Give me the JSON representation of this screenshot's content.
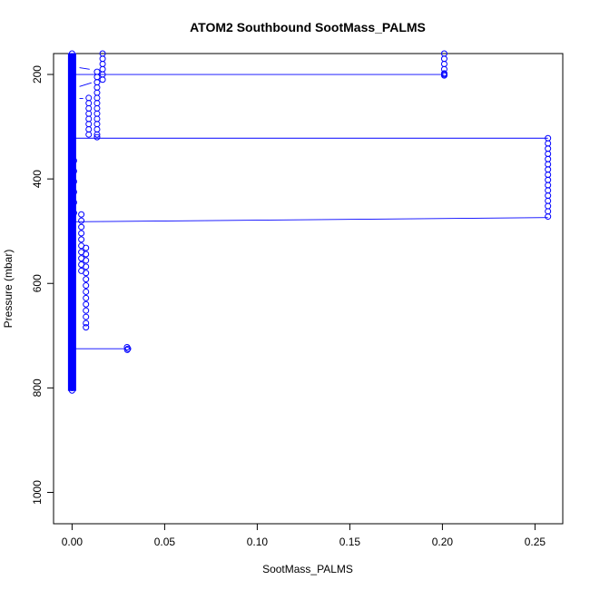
{
  "chart_data": {
    "type": "scatter",
    "title": "ATOM2 Southbound SootMass_PALMS",
    "xlabel": "SootMass_PALMS",
    "ylabel": "Pressure (mbar)",
    "xlim": [
      -0.01,
      0.265
    ],
    "ylim": [
      1060,
      160
    ],
    "y_reversed": true,
    "grid": false,
    "x_ticks": [
      {
        "value": 0.0,
        "label": "0.00"
      },
      {
        "value": 0.05,
        "label": "0.05"
      },
      {
        "value": 0.1,
        "label": "0.10"
      },
      {
        "value": 0.15,
        "label": "0.15"
      },
      {
        "value": 0.2,
        "label": "0.20"
      },
      {
        "value": 0.25,
        "label": "0.25"
      }
    ],
    "y_ticks": [
      {
        "value": 200,
        "label": "200"
      },
      {
        "value": 400,
        "label": "400"
      },
      {
        "value": 600,
        "label": "600"
      },
      {
        "value": 800,
        "label": "800"
      },
      {
        "value": 1000,
        "label": "1000"
      }
    ],
    "colors": {
      "points": "#0000ff",
      "line": "#0000ff",
      "axes": "#000000"
    },
    "series": [
      {
        "points": [
          {
            "x": 0.0,
            "y": 160
          },
          {
            "x": 0.0,
            "y": 200
          },
          {
            "x": 0.0,
            "y": 250
          },
          {
            "x": 0.0,
            "y": 300
          },
          {
            "x": 0.0,
            "y": 350
          },
          {
            "x": 0.0,
            "y": 400
          },
          {
            "x": 0.0,
            "y": 450
          },
          {
            "x": 0.0,
            "y": 500
          },
          {
            "x": 0.0,
            "y": 550
          },
          {
            "x": 0.0,
            "y": 600
          },
          {
            "x": 0.0,
            "y": 650
          },
          {
            "x": 0.0,
            "y": 700
          },
          {
            "x": 0.0,
            "y": 750
          },
          {
            "x": 0.0,
            "y": 800
          },
          {
            "x": 0.0,
            "y": 805
          },
          {
            "x": 0.0165,
            "y": 160
          },
          {
            "x": 0.0165,
            "y": 170
          },
          {
            "x": 0.0165,
            "y": 180
          },
          {
            "x": 0.0165,
            "y": 190
          },
          {
            "x": 0.0165,
            "y": 200
          },
          {
            "x": 0.0165,
            "y": 210
          },
          {
            "x": 0.0135,
            "y": 195
          },
          {
            "x": 0.0135,
            "y": 205
          },
          {
            "x": 0.0135,
            "y": 215
          },
          {
            "x": 0.0135,
            "y": 225
          },
          {
            "x": 0.0135,
            "y": 235
          },
          {
            "x": 0.0135,
            "y": 245
          },
          {
            "x": 0.0135,
            "y": 255
          },
          {
            "x": 0.0135,
            "y": 265
          },
          {
            "x": 0.0135,
            "y": 275
          },
          {
            "x": 0.0135,
            "y": 285
          },
          {
            "x": 0.0135,
            "y": 295
          },
          {
            "x": 0.0135,
            "y": 305
          },
          {
            "x": 0.0135,
            "y": 315
          },
          {
            "x": 0.0135,
            "y": 320
          },
          {
            "x": 0.009,
            "y": 245
          },
          {
            "x": 0.009,
            "y": 255
          },
          {
            "x": 0.009,
            "y": 265
          },
          {
            "x": 0.009,
            "y": 275
          },
          {
            "x": 0.009,
            "y": 285
          },
          {
            "x": 0.009,
            "y": 295
          },
          {
            "x": 0.009,
            "y": 305
          },
          {
            "x": 0.009,
            "y": 315
          },
          {
            "x": 0.201,
            "y": 160
          },
          {
            "x": 0.201,
            "y": 170
          },
          {
            "x": 0.201,
            "y": 180
          },
          {
            "x": 0.201,
            "y": 190
          },
          {
            "x": 0.201,
            "y": 198
          },
          {
            "x": 0.201,
            "y": 200
          },
          {
            "x": 0.201,
            "y": 202
          },
          {
            "x": 0.257,
            "y": 322
          },
          {
            "x": 0.257,
            "y": 332
          },
          {
            "x": 0.257,
            "y": 342
          },
          {
            "x": 0.257,
            "y": 352
          },
          {
            "x": 0.257,
            "y": 362
          },
          {
            "x": 0.257,
            "y": 372
          },
          {
            "x": 0.257,
            "y": 382
          },
          {
            "x": 0.257,
            "y": 392
          },
          {
            "x": 0.257,
            "y": 402
          },
          {
            "x": 0.257,
            "y": 412
          },
          {
            "x": 0.257,
            "y": 422
          },
          {
            "x": 0.257,
            "y": 432
          },
          {
            "x": 0.257,
            "y": 442
          },
          {
            "x": 0.257,
            "y": 452
          },
          {
            "x": 0.257,
            "y": 462
          },
          {
            "x": 0.257,
            "y": 472
          },
          {
            "x": 0.001,
            "y": 365
          },
          {
            "x": 0.001,
            "y": 385
          },
          {
            "x": 0.001,
            "y": 405
          },
          {
            "x": 0.001,
            "y": 425
          },
          {
            "x": 0.001,
            "y": 445
          },
          {
            "x": 0.001,
            "y": 465
          },
          {
            "x": 0.005,
            "y": 468
          },
          {
            "x": 0.005,
            "y": 480
          },
          {
            "x": 0.005,
            "y": 492
          },
          {
            "x": 0.005,
            "y": 504
          },
          {
            "x": 0.005,
            "y": 516
          },
          {
            "x": 0.005,
            "y": 528
          },
          {
            "x": 0.005,
            "y": 540
          },
          {
            "x": 0.005,
            "y": 552
          },
          {
            "x": 0.005,
            "y": 564
          },
          {
            "x": 0.005,
            "y": 576
          },
          {
            "x": 0.0075,
            "y": 532
          },
          {
            "x": 0.0075,
            "y": 544
          },
          {
            "x": 0.0075,
            "y": 556
          },
          {
            "x": 0.0075,
            "y": 568
          },
          {
            "x": 0.0075,
            "y": 580
          },
          {
            "x": 0.0075,
            "y": 592
          },
          {
            "x": 0.0075,
            "y": 604
          },
          {
            "x": 0.0075,
            "y": 616
          },
          {
            "x": 0.0075,
            "y": 628
          },
          {
            "x": 0.0075,
            "y": 640
          },
          {
            "x": 0.0075,
            "y": 652
          },
          {
            "x": 0.0075,
            "y": 664
          },
          {
            "x": 0.0075,
            "y": 676
          },
          {
            "x": 0.0075,
            "y": 684
          },
          {
            "x": 0.0297,
            "y": 722
          },
          {
            "x": 0.0302,
            "y": 725
          },
          {
            "x": 0.0298,
            "y": 727
          }
        ],
        "connecting_lines": [
          {
            "x1": 0.0,
            "y1": 200,
            "x2": 0.201,
            "y2": 200
          },
          {
            "x1": 0.0,
            "y1": 322,
            "x2": 0.257,
            "y2": 322
          },
          {
            "x1": 0.0,
            "y1": 482,
            "x2": 0.257,
            "y2": 474
          },
          {
            "x1": 0.0,
            "y1": 725,
            "x2": 0.029,
            "y2": 725
          },
          {
            "x1": 0.004,
            "y1": 187,
            "x2": 0.0095,
            "y2": 190
          },
          {
            "x1": 0.004,
            "y1": 223,
            "x2": 0.0105,
            "y2": 216
          },
          {
            "x1": 0.004,
            "y1": 246,
            "x2": 0.006,
            "y2": 246
          }
        ]
      }
    ]
  }
}
